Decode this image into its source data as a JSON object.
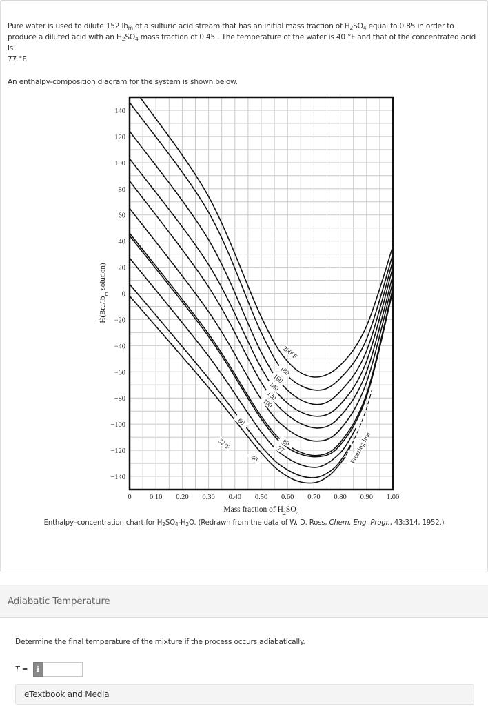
{
  "problem": {
    "line1_a": "Pure water is used to dilute 152 lb",
    "line1_unit_sub": "m",
    "line1_b": " of a sulfuric acid stream that has an initial mass fraction of H",
    "line1_sub2": "2",
    "line1_c": "SO",
    "line1_sub4": "4",
    "line1_d": " equal to 0.85 in order to",
    "line2_a": "produce a diluted acid with an H",
    "line2_sub2": "2",
    "line2_b": "SO",
    "line2_sub4": "4",
    "line2_c": " mass fraction of 0.45 . The temperature of the water is 40 °F and that of the concentrated acid is",
    "line3": "77 °F.",
    "intro": "An enthalpy-composition diagram for the system is shown below."
  },
  "caption": {
    "a": "Enthalpy–concentration chart for H",
    "s1": "2",
    "b": "SO",
    "s2": "4",
    "c": "-H",
    "s3": "2",
    "d": "O. (Redrawn from the data of W. D. Ross, ",
    "journal": "Chem. Eng. Progr.",
    "e": ", 43:314, 1952.)"
  },
  "section": {
    "title": "Adiabatic Temperature"
  },
  "question": {
    "prompt": "Determine the final temperature of the mixture if the process occurs adiabatically.",
    "var_label": "T",
    "eq": " =",
    "info_glyph": "i",
    "input_value": "",
    "icon": "info-icon"
  },
  "etextbook": {
    "label": "eTextbook and Media"
  },
  "chart_data": {
    "type": "line",
    "title": "Enthalpy-concentration chart for H2SO4-H2O",
    "xlabel": "Mass fraction of H2SO4",
    "ylabel": "Ĥ(Btu/lbm solution)",
    "xlim": [
      0,
      1.0
    ],
    "ylim": [
      -150,
      150
    ],
    "grid": true,
    "x_ticks": [
      "0",
      "0.10",
      "0.20",
      "0.30",
      "0.40",
      "0.50",
      "0.60",
      "0.70",
      "0.80",
      "0.90",
      "1.00"
    ],
    "y_ticks": [
      140,
      120,
      100,
      80,
      60,
      40,
      20,
      0,
      -20,
      -40,
      -60,
      -80,
      -100,
      -120,
      -140
    ],
    "series": [
      {
        "name": "200°F",
        "label": "200°F",
        "points": [
          [
            0.04,
            150
          ],
          [
            0.3,
            74
          ],
          [
            0.5,
            -18
          ],
          [
            0.6,
            -52
          ],
          [
            0.7,
            -64
          ],
          [
            0.8,
            -55
          ],
          [
            0.9,
            -25
          ],
          [
            1.0,
            36
          ]
        ]
      },
      {
        "name": "180°F",
        "label": "180",
        "points": [
          [
            0,
            146
          ],
          [
            0.3,
            62
          ],
          [
            0.5,
            -30
          ],
          [
            0.6,
            -63
          ],
          [
            0.71,
            -74
          ],
          [
            0.8,
            -65
          ],
          [
            0.9,
            -35
          ],
          [
            1.0,
            30
          ]
        ]
      },
      {
        "name": "160°F",
        "label": "160",
        "points": [
          [
            0,
            124
          ],
          [
            0.3,
            41
          ],
          [
            0.5,
            -45
          ],
          [
            0.6,
            -74
          ],
          [
            0.71,
            -85
          ],
          [
            0.8,
            -75
          ],
          [
            0.9,
            -44
          ],
          [
            1.0,
            25
          ]
        ]
      },
      {
        "name": "140°F",
        "label": "140",
        "points": [
          [
            0,
            103
          ],
          [
            0.3,
            22
          ],
          [
            0.5,
            -57
          ],
          [
            0.6,
            -84
          ],
          [
            0.71,
            -94
          ],
          [
            0.8,
            -85
          ],
          [
            0.9,
            -52
          ],
          [
            1.0,
            20
          ]
        ]
      },
      {
        "name": "120°F",
        "label": "120",
        "points": [
          [
            0,
            86
          ],
          [
            0.3,
            5
          ],
          [
            0.5,
            -68
          ],
          [
            0.6,
            -93
          ],
          [
            0.71,
            -103
          ],
          [
            0.8,
            -94
          ],
          [
            0.9,
            -60
          ],
          [
            1.0,
            14
          ]
        ]
      },
      {
        "name": "100°F",
        "label": "100",
        "points": [
          [
            0,
            65
          ],
          [
            0.3,
            -14
          ],
          [
            0.5,
            -81
          ],
          [
            0.6,
            -104
          ],
          [
            0.71,
            -113
          ],
          [
            0.8,
            -104
          ],
          [
            0.9,
            -68
          ],
          [
            1.0,
            9
          ]
        ]
      },
      {
        "name": "80°F",
        "label": "80",
        "points": [
          [
            0,
            46
          ],
          [
            0.3,
            -31
          ],
          [
            0.5,
            -94
          ],
          [
            0.6,
            -116
          ],
          [
            0.71,
            -124
          ],
          [
            0.8,
            -114
          ],
          [
            0.9,
            -77
          ],
          [
            1.0,
            4
          ]
        ]
      },
      {
        "name": "77°F",
        "label": "77",
        "points": [
          [
            0,
            44
          ],
          [
            0.3,
            -33
          ],
          [
            0.5,
            -96
          ],
          [
            0.6,
            -118
          ],
          [
            0.71,
            -125
          ],
          [
            0.8,
            -116
          ],
          [
            0.9,
            -79
          ],
          [
            1.0,
            2
          ]
        ]
      },
      {
        "name": "60°F",
        "label": "60",
        "points": [
          [
            0,
            27
          ],
          [
            0.3,
            -48
          ],
          [
            0.5,
            -106
          ],
          [
            0.6,
            -126
          ],
          [
            0.71,
            -133
          ],
          [
            0.8,
            -122
          ],
          [
            0.86,
            -103
          ]
        ]
      },
      {
        "name": "40°F",
        "label": "40",
        "points": [
          [
            0,
            7
          ],
          [
            0.3,
            -65
          ],
          [
            0.5,
            -117
          ],
          [
            0.6,
            -135
          ],
          [
            0.7,
            -141
          ],
          [
            0.78,
            -133
          ],
          [
            0.84,
            -116
          ]
        ]
      },
      {
        "name": "32°F",
        "label": "32°F",
        "points": [
          [
            0,
            -2
          ],
          [
            0.3,
            -72
          ],
          [
            0.5,
            -122
          ],
          [
            0.6,
            -140
          ],
          [
            0.69,
            -145
          ],
          [
            0.76,
            -139
          ],
          [
            0.82,
            -125
          ]
        ]
      }
    ],
    "annotations": [
      {
        "text": "200°F",
        "x": 0.61,
        "y": -45,
        "angle": 38
      },
      {
        "text": "180",
        "x": 0.59,
        "y": -59,
        "angle": 38
      },
      {
        "text": "160",
        "x": 0.565,
        "y": -65,
        "angle": 40
      },
      {
        "text": "140",
        "x": 0.55,
        "y": -71,
        "angle": 40
      },
      {
        "text": "120",
        "x": 0.54,
        "y": -78,
        "angle": 40
      },
      {
        "text": "100",
        "x": 0.525,
        "y": -84,
        "angle": 40
      },
      {
        "text": "80",
        "x": 0.595,
        "y": -114,
        "angle": 30
      },
      {
        "text": "77",
        "x": 0.575,
        "y": -119,
        "angle": 30
      },
      {
        "text": "60",
        "x": 0.425,
        "y": -98,
        "angle": 40
      },
      {
        "text": "40",
        "x": 0.475,
        "y": -126,
        "angle": 40
      },
      {
        "text": "32°F",
        "x": 0.36,
        "y": -115,
        "angle": 40
      },
      {
        "text": "Freezing line",
        "x": 0.875,
        "y": -118,
        "angle": -62
      }
    ],
    "freezing_line": [
      [
        0.81,
        -128
      ],
      [
        0.84,
        -117
      ],
      [
        0.87,
        -104
      ],
      [
        0.9,
        -88
      ],
      [
        0.92,
        -74
      ]
    ]
  }
}
